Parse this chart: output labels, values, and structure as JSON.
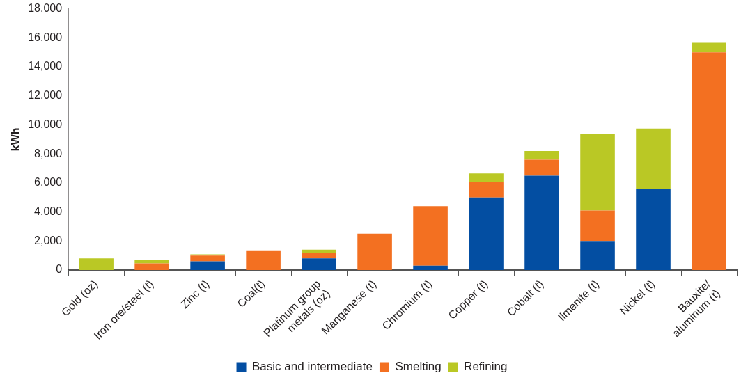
{
  "chart_data": {
    "type": "bar",
    "stacked": true,
    "ylabel": "kWh",
    "categories": [
      "Gold (oz)",
      "Iron ore/steel (t)",
      "Zinc (t)",
      "Coal(t)",
      "Platinum group metals (oz)",
      "Manganese (t)",
      "Chromium (t)",
      "Copper (t)",
      "Cobalt (t)",
      "Ilmenite (t)",
      "Nickel (t)",
      "Bauxite/ aluminum (t)"
    ],
    "series": [
      {
        "name": "Basic and intermediate",
        "color": "#034ea2",
        "values": [
          0,
          0,
          600,
          0,
          800,
          0,
          300,
          5000,
          6500,
          2000,
          5600,
          0
        ]
      },
      {
        "name": "Smelting",
        "color": "#f37021",
        "values": [
          0,
          450,
          400,
          1350,
          400,
          2500,
          4100,
          1050,
          1100,
          2100,
          0,
          15000
        ]
      },
      {
        "name": "Refining",
        "color": "#bac825",
        "values": [
          800,
          250,
          80,
          0,
          200,
          0,
          0,
          600,
          600,
          5250,
          4150,
          650
        ]
      }
    ],
    "ylim": [
      0,
      18000
    ],
    "yticks": [
      0,
      {
        "value": 2000,
        "label": "2,000"
      },
      {
        "value": 4000,
        "label": "4,000"
      },
      {
        "value": 6000,
        "label": "6,000"
      },
      {
        "value": 8000,
        "label": "8,000"
      },
      {
        "value": 10000,
        "label": "10,000"
      },
      {
        "value": 12000,
        "label": "12,000"
      },
      {
        "value": 14000,
        "label": "14,000"
      },
      {
        "value": 16000,
        "label": "16,000"
      },
      {
        "value": 18000,
        "label": "18,000"
      }
    ],
    "grid": false,
    "legend": "bottom"
  }
}
